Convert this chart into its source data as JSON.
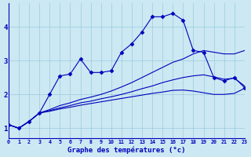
{
  "xlabel": "Graphe des températures (°c)",
  "xlim": [
    0,
    23
  ],
  "ylim": [
    0.7,
    4.7
  ],
  "yticks": [
    1,
    2,
    3,
    4
  ],
  "xticks": [
    0,
    1,
    2,
    3,
    4,
    5,
    6,
    7,
    8,
    9,
    10,
    11,
    12,
    13,
    14,
    15,
    16,
    17,
    18,
    19,
    20,
    21,
    22,
    23
  ],
  "background_color": "#cce8f2",
  "line_color": "#0000bb",
  "grid_color": "#99cce0",
  "line_main": {
    "x": [
      0,
      1,
      2,
      3,
      4,
      5,
      6,
      7,
      8,
      9,
      10,
      11,
      12,
      13,
      14,
      15,
      16,
      17,
      18,
      19,
      20,
      21,
      22,
      23
    ],
    "y": [
      1.1,
      1.0,
      1.2,
      1.45,
      2.0,
      2.55,
      2.6,
      3.05,
      2.65,
      2.65,
      2.7,
      3.25,
      3.5,
      3.85,
      4.3,
      4.3,
      4.4,
      4.2,
      3.3,
      3.25,
      2.5,
      2.4,
      2.5,
      2.2
    ]
  },
  "line2": {
    "x": [
      0,
      1,
      2,
      3,
      4,
      5,
      6,
      7,
      8,
      9,
      10,
      11,
      12,
      13,
      14,
      15,
      16,
      17,
      18,
      19,
      20,
      21,
      22,
      23
    ],
    "y": [
      1.1,
      1.0,
      1.2,
      1.45,
      1.55,
      1.67,
      1.75,
      1.85,
      1.92,
      2.0,
      2.1,
      2.22,
      2.35,
      2.5,
      2.65,
      2.8,
      2.95,
      3.05,
      3.2,
      3.3,
      3.25,
      3.2,
      3.2,
      3.3
    ]
  },
  "line3": {
    "x": [
      0,
      1,
      2,
      3,
      4,
      5,
      6,
      7,
      8,
      9,
      10,
      11,
      12,
      13,
      14,
      15,
      16,
      17,
      18,
      19,
      20,
      21,
      22,
      23
    ],
    "y": [
      1.1,
      1.0,
      1.2,
      1.45,
      1.52,
      1.6,
      1.67,
      1.75,
      1.8,
      1.87,
      1.93,
      2.0,
      2.08,
      2.17,
      2.25,
      2.35,
      2.43,
      2.5,
      2.55,
      2.58,
      2.52,
      2.45,
      2.48,
      2.25
    ]
  },
  "line4": {
    "x": [
      0,
      1,
      2,
      3,
      4,
      5,
      6,
      7,
      8,
      9,
      10,
      11,
      12,
      13,
      14,
      15,
      16,
      17,
      18,
      19,
      20,
      21,
      22,
      23
    ],
    "y": [
      1.1,
      1.0,
      1.2,
      1.45,
      1.5,
      1.57,
      1.62,
      1.68,
      1.73,
      1.78,
      1.83,
      1.88,
      1.93,
      1.98,
      2.03,
      2.07,
      2.12,
      2.13,
      2.1,
      2.05,
      2.0,
      2.0,
      2.03,
      2.18
    ]
  }
}
